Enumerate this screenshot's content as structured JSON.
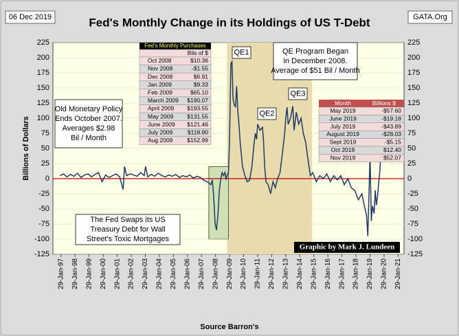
{
  "chart_data": {
    "type": "line",
    "title": "Fed's Monthly Change in its Holdings of US T-Debt",
    "date_label": "06 Dec 2019",
    "source_tag": "GATA.Org",
    "y_label": "Billions  of Dollars",
    "x_label": "Source Barron's",
    "credit": "Graphic by Mark J. Lundeen",
    "xlim": [
      1996.5,
      2021.5
    ],
    "ylim": [
      -125,
      225
    ],
    "yticks": [
      -125,
      -100,
      -75,
      -50,
      -25,
      0,
      25,
      50,
      75,
      100,
      125,
      150,
      175,
      200,
      225
    ],
    "xticks": [
      {
        "value": 1997.08,
        "label": "29-Jan-97"
      },
      {
        "value": 1998.08,
        "label": "29-Jan-98"
      },
      {
        "value": 1999.08,
        "label": "29-Jan-99"
      },
      {
        "value": 2000.08,
        "label": "29-Jan-00"
      },
      {
        "value": 2001.08,
        "label": "29-Jan-01"
      },
      {
        "value": 2002.08,
        "label": "29-Jan-02"
      },
      {
        "value": 2003.08,
        "label": "29-Jan-03"
      },
      {
        "value": 2004.08,
        "label": "29-Jan-04"
      },
      {
        "value": 2005.08,
        "label": "29-Jan-05"
      },
      {
        "value": 2006.08,
        "label": "29-Jan-06"
      },
      {
        "value": 2007.08,
        "label": "29-Jan-07"
      },
      {
        "value": 2008.08,
        "label": "29-Jan-08"
      },
      {
        "value": 2009.08,
        "label": "29-Jan-09"
      },
      {
        "value": 2010.08,
        "label": "29-Jan-10"
      },
      {
        "value": 2011.08,
        "label": "29-Jan-11"
      },
      {
        "value": 2012.08,
        "label": "29-Jan-12"
      },
      {
        "value": 2013.08,
        "label": "29-Jan-13"
      },
      {
        "value": 2014.08,
        "label": "29-Jan-14"
      },
      {
        "value": 2015.08,
        "label": "29-Jan-15"
      },
      {
        "value": 2016.08,
        "label": "29-Jan-16"
      },
      {
        "value": 2017.08,
        "label": "29-Jan-17"
      },
      {
        "value": 2018.08,
        "label": "29-Jan-18"
      },
      {
        "value": 2019.08,
        "label": "29-Jan-19"
      },
      {
        "value": 2020.08,
        "label": "29-Jan-20"
      },
      {
        "value": 2021.08,
        "label": "29-Jan-21"
      }
    ],
    "color": "#1f3864",
    "zero_line_color": "#c00000",
    "qe_region": {
      "x": [
        2008.9,
        2014.95
      ],
      "color": "#e8dcae"
    },
    "swap_region": {
      "x": [
        2007.6,
        2009.0
      ],
      "y": [
        -100,
        20
      ],
      "color": "#cfe0b4"
    },
    "x": [
      1997.0,
      1997.25,
      1997.5,
      1997.75,
      1998.0,
      1998.25,
      1998.5,
      1998.75,
      1999.0,
      1999.25,
      1999.5,
      1999.75,
      2000.0,
      2000.25,
      2000.5,
      2000.75,
      2001.0,
      2001.25,
      2001.5,
      2001.6,
      2001.75,
      2002.0,
      2002.25,
      2002.5,
      2002.75,
      2003.0,
      2003.1,
      2003.25,
      2003.5,
      2003.75,
      2004.0,
      2004.25,
      2004.5,
      2004.75,
      2005.0,
      2005.25,
      2005.5,
      2005.75,
      2006.0,
      2006.25,
      2006.5,
      2006.75,
      2007.0,
      2007.25,
      2007.5,
      2007.75,
      2007.85,
      2007.95,
      2008.05,
      2008.15,
      2008.25,
      2008.35,
      2008.45,
      2008.55,
      2008.65,
      2008.75,
      2008.83,
      2008.92,
      2009.0,
      2009.08,
      2009.17,
      2009.25,
      2009.33,
      2009.42,
      2009.5,
      2009.58,
      2009.67,
      2009.75,
      2009.83,
      2009.92,
      2010.0,
      2010.17,
      2010.33,
      2010.5,
      2010.67,
      2010.83,
      2010.92,
      2011.0,
      2011.08,
      2011.25,
      2011.42,
      2011.5,
      2011.58,
      2011.67,
      2011.83,
      2012.0,
      2012.17,
      2012.33,
      2012.5,
      2012.67,
      2012.83,
      2013.0,
      2013.08,
      2013.17,
      2013.25,
      2013.42,
      2013.58,
      2013.67,
      2013.83,
      2014.0,
      2014.17,
      2014.33,
      2014.5,
      2014.67,
      2014.83,
      2015.0,
      2015.25,
      2015.5,
      2015.75,
      2016.0,
      2016.25,
      2016.5,
      2016.75,
      2017.0,
      2017.25,
      2017.5,
      2017.75,
      2018.0,
      2018.25,
      2018.5,
      2018.67,
      2018.83,
      2018.92,
      2019.0,
      2019.08,
      2019.17,
      2019.25,
      2019.37,
      2019.45,
      2019.53,
      2019.62,
      2019.7,
      2019.78,
      2019.87
    ],
    "values": [
      5,
      8,
      3,
      7,
      4,
      9,
      2,
      6,
      8,
      3,
      7,
      10,
      -5,
      6,
      2,
      5,
      8,
      3,
      -18,
      20,
      5,
      8,
      6,
      4,
      10,
      5,
      20,
      3,
      7,
      4,
      9,
      5,
      3,
      6,
      4,
      7,
      2,
      5,
      3,
      6,
      1,
      4,
      2,
      -3,
      -5,
      -10,
      -2,
      -30,
      -75,
      -85,
      -60,
      -20,
      0,
      10,
      5,
      10.36,
      -1.55,
      6.91,
      9.33,
      65.1,
      190.07,
      193.55,
      131.55,
      121.46,
      118.9,
      152.99,
      110,
      90,
      60,
      40,
      20,
      5,
      -5,
      -3,
      20,
      60,
      75,
      65,
      90,
      80,
      85,
      60,
      20,
      -5,
      -10,
      -25,
      -5,
      -15,
      0,
      10,
      40,
      75,
      100,
      118,
      90,
      100,
      120,
      80,
      110,
      90,
      100,
      75,
      60,
      30,
      5,
      10,
      -5,
      5,
      0,
      8,
      -5,
      5,
      -2,
      5,
      -10,
      0,
      -15,
      -20,
      -35,
      -25,
      -45,
      -60,
      -95,
      -30,
      40,
      -70,
      -45,
      -57.6,
      -19.18,
      -43.89,
      -28.03,
      -5.15,
      12.4,
      52.07
    ],
    "annotations": {
      "qe1": "QE1",
      "qe2": "QE2",
      "qe3": "QE3",
      "old_policy": [
        "Old Monetary Policy",
        "Ends October 2007.",
        "Averages $2.98",
        "Bil / Month"
      ],
      "qe_began": [
        "QE Program Began",
        "in December 2008.",
        "Average of $51 Bil / Month"
      ],
      "swap": [
        "The Fed Swaps its US",
        "Treasury Debt for Wall",
        "Street's Toxic Mortgages"
      ]
    },
    "left_table": {
      "title": "Fed's Monthly Purchases",
      "subtitle": "Bils of $",
      "rows": [
        [
          "Oct 2008",
          "$10.36"
        ],
        [
          "Nov 2008",
          "-$1.55"
        ],
        [
          "Dec 2008",
          "$6.91"
        ],
        [
          "Jan 2009",
          "$9.33"
        ],
        [
          "Feb 2009",
          "$65.10"
        ],
        [
          "March 2009",
          "$190.07"
        ],
        [
          "April 2009",
          "$193.55"
        ],
        [
          "May 2009",
          "$131.55"
        ],
        [
          "June 2009",
          "$121.46"
        ],
        [
          "July 2009",
          "$118.90"
        ],
        [
          "Aug 2009",
          "$152.99"
        ]
      ]
    },
    "right_table": {
      "headers": [
        "Month",
        "Billions $"
      ],
      "rows": [
        [
          "May 2019",
          "-$57.60"
        ],
        [
          "June 2019",
          "-$19.18"
        ],
        [
          "July 2019",
          "-$43.89"
        ],
        [
          "August 2019",
          "-$28.03"
        ],
        [
          "Sept 2019",
          "-$5.15"
        ],
        [
          "Oct 2019",
          "$12.40"
        ],
        [
          "Nov 2019",
          "$52.07"
        ]
      ]
    }
  }
}
